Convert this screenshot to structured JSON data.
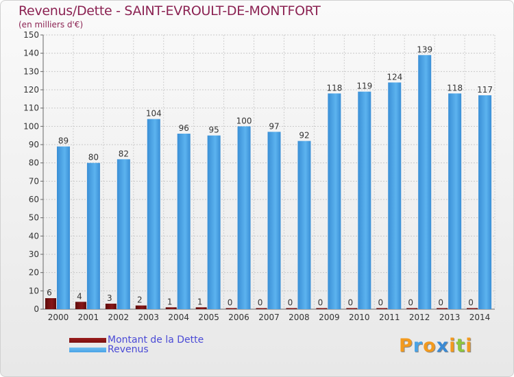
{
  "chart_data": {
    "type": "bar",
    "title": "Revenus/Dette - SAINT-EVROULT-DE-MONTFORT",
    "subtitle": "(en milliers d'€)",
    "categories": [
      "2000",
      "2001",
      "2002",
      "2003",
      "2004",
      "2005",
      "2006",
      "2007",
      "2008",
      "2009",
      "2010",
      "2011",
      "2012",
      "2013",
      "2014"
    ],
    "series": [
      {
        "name": "Montant de la Dette",
        "color": "#7a1010",
        "values": [
          6,
          4,
          3,
          2,
          1,
          1,
          0,
          0,
          0,
          0,
          0,
          0,
          0,
          0,
          0
        ]
      },
      {
        "name": "Revenus",
        "color": "#4aa3e6",
        "values": [
          89,
          80,
          82,
          104,
          96,
          95,
          100,
          97,
          92,
          118,
          119,
          124,
          139,
          118,
          117
        ]
      }
    ],
    "ylim": [
      0,
      150
    ],
    "yticks": [
      0,
      10,
      20,
      30,
      40,
      50,
      60,
      70,
      80,
      90,
      100,
      110,
      120,
      130,
      140,
      150
    ],
    "grid": true,
    "legend": "bottom-left"
  },
  "logo": {
    "letters": [
      {
        "char": "P",
        "color": "#f29a1f"
      },
      {
        "char": "r",
        "color": "#4aa3e6"
      },
      {
        "char": "o",
        "color": "#f29a1f"
      },
      {
        "char": "x",
        "color": "#3a8ad4"
      },
      {
        "char": "i",
        "color": "#f29a1f"
      },
      {
        "char": "t",
        "color": "#8cc63f"
      },
      {
        "char": "i",
        "color": "#f29a1f"
      }
    ]
  }
}
